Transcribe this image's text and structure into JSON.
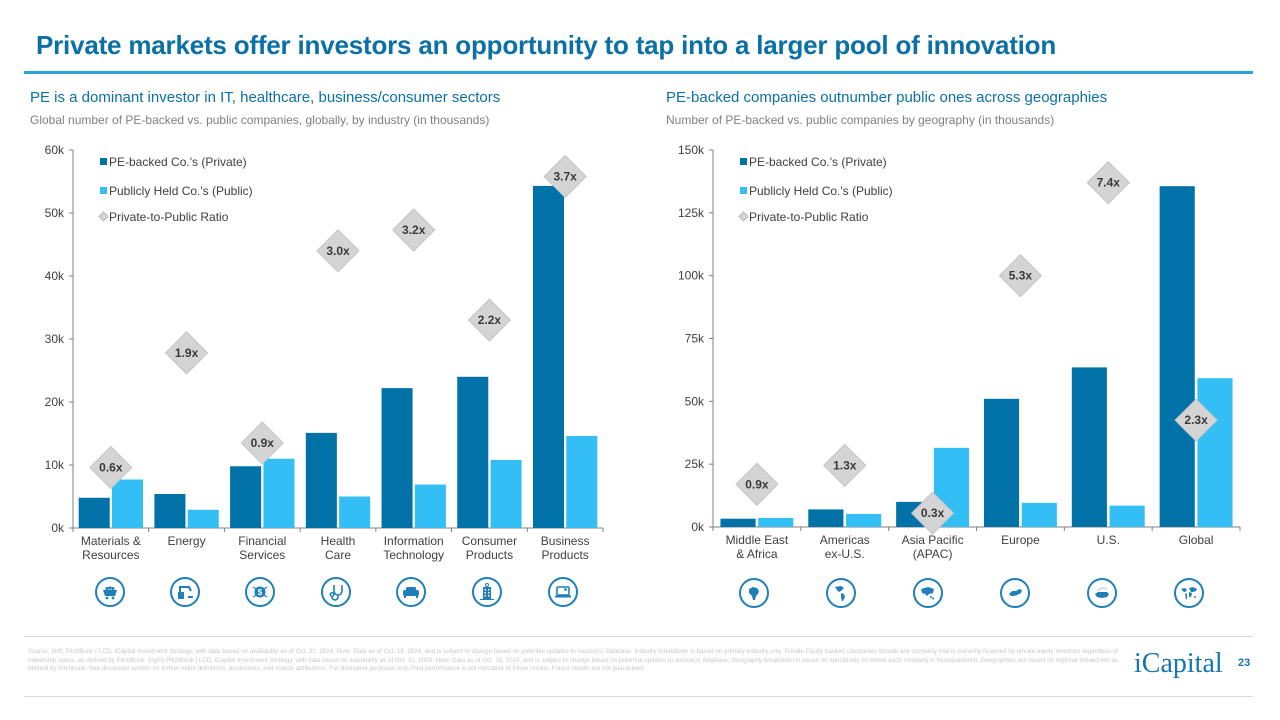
{
  "page": {
    "title": "Private markets offer investors an opportunity to tap into a larger pool of innovation",
    "page_number": "23",
    "logo_text": "iCapital",
    "footnote": "Source: (left) PitchBook | LCD, iCapital Investment Strategy, with data based on availability as of Oct. 31, 2024. Note: Data as of Oct. 18, 2024, and is subject to change based on potential updates to source(s) database. Industry breakdown is based on primary industry only. Private Equity backed companies include any company that is currently financed by private equity investors regardless of ownership status, as defined by PitchBook. (right) PitchBook | LCD, iCapital Investment Strategy, with data based on availability as of Oct. 31, 2024. Note: Data as of Oct. 18, 2024, and is subject to change based on potential updates to source(s) database. Geography breakdown is based on specifically on where each company is headquartered. Geographies are based on regional breakdown as defined by Pitchbook. See disclosure section for further index definitions, disclosures, and source attributions. For illustrative purposes only. Past performance is not indicative of future results. Future results are not guaranteed.",
    "colors": {
      "brand": "#0a70a5",
      "private": "#0072a8",
      "public": "#33bff5",
      "ratio_marker": "#d4d4d4"
    }
  },
  "left_panel": {
    "heading": "PE is a dominant investor in IT, healthcare, business/consumer sectors",
    "description": "Global number of PE-backed vs. public companies, globally, by industry (in thousands)",
    "icons": [
      "mine-cart-icon",
      "industrial-robot-icon",
      "dollar-network-icon",
      "stethoscope-icon",
      "sofa-icon",
      "office-building-icon",
      "laptop-icon"
    ]
  },
  "right_panel": {
    "heading": "PE-backed companies outnumber public ones across geographies",
    "description": "Number of PE-backed vs. public companies by geography (in thousands)",
    "icons": [
      "africa-map-icon",
      "americas-map-icon",
      "asia-pacific-map-icon",
      "europe-map-icon",
      "us-map-icon",
      "world-map-icon"
    ]
  },
  "chart_data": [
    {
      "type": "bar",
      "title": "Global number of PE-backed vs. public companies, globally, by industry (in thousands)",
      "xlabel": "",
      "ylabel": "",
      "ylim": [
        0,
        60
      ],
      "yticks": [
        0,
        10,
        20,
        30,
        40,
        50,
        60
      ],
      "ytick_labels": [
        "0k",
        "10k",
        "20k",
        "30k",
        "40k",
        "50k",
        "60k"
      ],
      "grid": false,
      "legend_position": "top-left",
      "categories": [
        [
          "Materials &",
          "Resources"
        ],
        [
          "Energy"
        ],
        [
          "Financial",
          "Services"
        ],
        [
          "Health",
          "Care"
        ],
        [
          "Information",
          "Technology"
        ],
        [
          "Consumer",
          "Products"
        ],
        [
          "Business",
          "Products"
        ]
      ],
      "series": [
        {
          "name": "PE-backed Co.'s (Private)",
          "values": [
            4.8,
            5.4,
            9.8,
            15.1,
            22.2,
            24.0,
            54.3
          ]
        },
        {
          "name": "Publicly Held Co.'s (Public)",
          "values": [
            7.7,
            2.9,
            11.0,
            5.0,
            6.9,
            10.8,
            14.6
          ]
        }
      ],
      "ratio": {
        "name": "Private-to-Public Ratio",
        "labels": [
          "0.6x",
          "1.9x",
          "0.9x",
          "3.0x",
          "3.2x",
          "2.2x",
          "3.7x"
        ],
        "marker_y": [
          9.6,
          27.8,
          13.5,
          44.0,
          47.3,
          33.0,
          55.8
        ]
      }
    },
    {
      "type": "bar",
      "title": "Number of PE-backed vs. public companies by geography (in thousands)",
      "xlabel": "",
      "ylabel": "",
      "ylim": [
        0,
        150
      ],
      "yticks": [
        0,
        25,
        50,
        75,
        100,
        125,
        150
      ],
      "ytick_labels": [
        "0k",
        "25k",
        "50k",
        "75k",
        "100k",
        "125k",
        "150k"
      ],
      "grid": false,
      "legend_position": "top-left",
      "categories": [
        [
          "Middle East",
          "& Africa"
        ],
        [
          "Americas",
          "ex-U.S."
        ],
        [
          "Asia Pacific",
          "(APAC)"
        ],
        [
          "Europe"
        ],
        [
          "U.S."
        ],
        [
          "Global"
        ]
      ],
      "series": [
        {
          "name": "PE-backed Co.'s (Private)",
          "values": [
            3.3,
            7.0,
            10.0,
            51.0,
            63.5,
            135.6
          ]
        },
        {
          "name": "Publicly Held Co.'s (Public)",
          "values": [
            3.6,
            5.2,
            31.5,
            9.6,
            8.5,
            59.2
          ]
        }
      ],
      "ratio": {
        "name": "Private-to-Public Ratio",
        "labels": [
          "0.9x",
          "1.3x",
          "0.3x",
          "5.3x",
          "7.4x",
          "2.3x"
        ],
        "marker_y": [
          17.0,
          24.5,
          5.5,
          100.0,
          137.0,
          42.5
        ]
      }
    }
  ]
}
